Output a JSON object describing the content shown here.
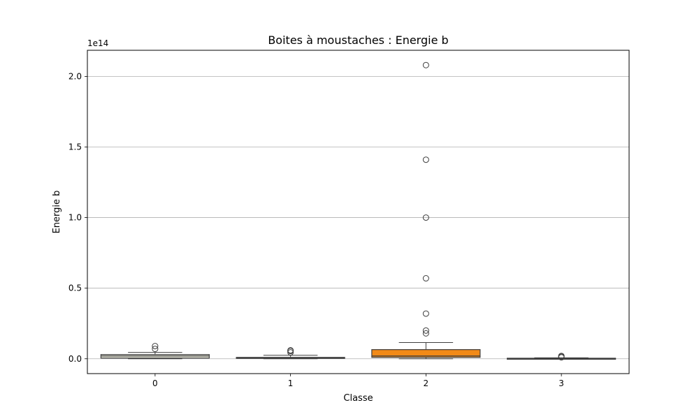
{
  "chart_data": {
    "type": "box",
    "title": "Boites à moustaches : Energie b",
    "xlabel": "Classe",
    "ylabel": "Energie b",
    "y_offset_text": "1e14",
    "y_scale": 100000000000000.0,
    "ylim": [
      -0.105,
      2.185
    ],
    "yticks": [
      0.0,
      0.5,
      1.0,
      1.5,
      2.0
    ],
    "ytick_labels": [
      "0.0",
      "0.5",
      "1.0",
      "1.5",
      "2.0"
    ],
    "grid": "horizontal",
    "categories": [
      "0",
      "1",
      "2",
      "3"
    ],
    "boxes": [
      {
        "category": "0",
        "color": "#e6e6d8",
        "whisker_low": 0.0,
        "q1": 0.005,
        "median": 0.02,
        "q3": 0.03,
        "whisker_high": 0.045,
        "outliers": [
          0.07,
          0.09
        ]
      },
      {
        "category": "1",
        "color": "#d6d6c6",
        "whisker_low": 0.0,
        "q1": 0.003,
        "median": 0.006,
        "q3": 0.01,
        "whisker_high": 0.025,
        "outliers": [
          0.045,
          0.055,
          0.06
        ]
      },
      {
        "category": "2",
        "color": "#f28a17",
        "whisker_low": 0.0,
        "q1": 0.01,
        "median": 0.02,
        "q3": 0.065,
        "whisker_high": 0.115,
        "outliers": [
          0.18,
          0.2,
          0.32,
          0.57,
          1.0,
          1.41,
          2.08
        ]
      },
      {
        "category": "3",
        "color": "#d0d0c0",
        "whisker_low": 0.0,
        "q1": 0.001,
        "median": 0.002,
        "q3": 0.004,
        "whisker_high": 0.007,
        "outliers": [
          0.01,
          0.015,
          0.02
        ]
      }
    ]
  }
}
